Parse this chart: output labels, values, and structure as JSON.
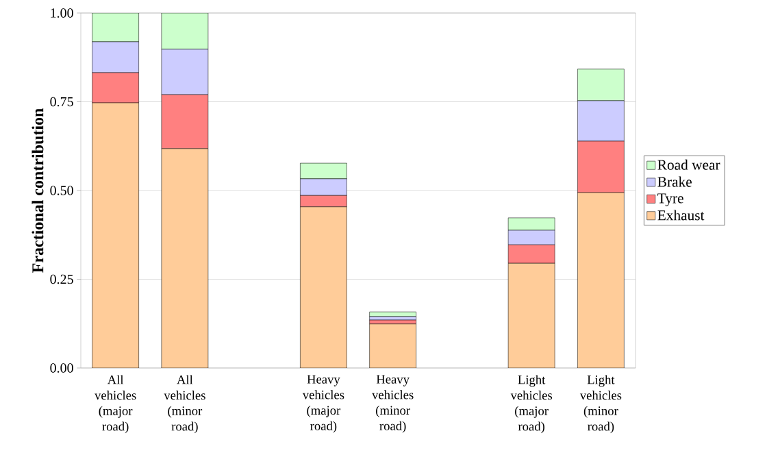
{
  "chart_data": {
    "type": "bar",
    "stacked": true,
    "ylabel": "Fractional contribution",
    "categories": [
      "All vehicles (major road)",
      "All vehicles (minor road)",
      null,
      "Heavy vehicles (major road)",
      "Heavy vehicles (minor road)",
      null,
      "Light vehicles (major road)",
      "Light vehicles (minor road)"
    ],
    "series": [
      {
        "name": "Exhaust",
        "color": "#ffcc99",
        "values": [
          0.747,
          0.618,
          null,
          0.454,
          0.124,
          null,
          0.295,
          0.494
        ]
      },
      {
        "name": "Tyre",
        "color": "#ff8080",
        "values": [
          0.085,
          0.152,
          null,
          0.032,
          0.011,
          null,
          0.052,
          0.145
        ]
      },
      {
        "name": "Brake",
        "color": "#ccccff",
        "values": [
          0.087,
          0.128,
          null,
          0.047,
          0.01,
          null,
          0.041,
          0.114
        ]
      },
      {
        "name": "Road wear",
        "color": "#ccffcc",
        "values": [
          0.081,
          0.102,
          null,
          0.044,
          0.013,
          null,
          0.035,
          0.089
        ]
      }
    ],
    "ylim": [
      0,
      1
    ],
    "yticks": [
      {
        "value": 0,
        "label": "0.00"
      },
      {
        "value": 0.25,
        "label": "0.25"
      },
      {
        "value": 0.5,
        "label": "0.50"
      },
      {
        "value": 0.75,
        "label": "0.75"
      },
      {
        "value": 1,
        "label": "1.00"
      }
    ],
    "grid": "y",
    "legend": "right"
  }
}
